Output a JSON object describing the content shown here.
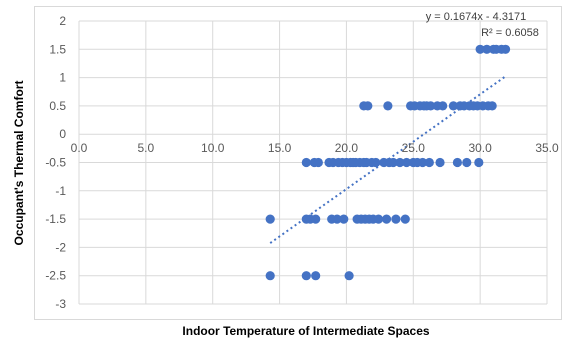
{
  "chart_data": {
    "type": "scatter",
    "xlabel": "Indoor Temperature of Intermediate Spaces",
    "ylabel": "Occupant's Thermal Comfort",
    "xlim": [
      0,
      35
    ],
    "ylim": [
      -3,
      2
    ],
    "x_ticks": [
      "0.0",
      "5.0",
      "10.0",
      "15.0",
      "20.0",
      "25.0",
      "30.0",
      "35.0"
    ],
    "y_ticks": [
      "2",
      "1.5",
      "1",
      "0.5",
      "0",
      "-0.5",
      "-1",
      "-1.5",
      "-2",
      "-2.5",
      "-3"
    ],
    "grid": true,
    "point_color": "#4472c4",
    "trendline": {
      "slope": 0.1674,
      "intercept": -4.3171,
      "x_range": [
        14.3,
        31.9
      ],
      "style": "dotted",
      "color": "#4472c4",
      "equation": "y = 0.1674x - 4.3171",
      "r2_label": "R² = 0.6058"
    },
    "series": [
      {
        "points": [
          [
            14.3,
            -1.5
          ],
          [
            14.3,
            -2.5
          ],
          [
            17.0,
            -0.5
          ],
          [
            17.0,
            -1.5
          ],
          [
            17.0,
            -2.5
          ],
          [
            17.3,
            -1.5
          ],
          [
            17.6,
            -0.5
          ],
          [
            17.7,
            -1.5
          ],
          [
            17.7,
            -2.5
          ],
          [
            17.9,
            -0.5
          ],
          [
            18.7,
            -0.5
          ],
          [
            18.9,
            -1.5
          ],
          [
            19.0,
            -0.5
          ],
          [
            19.3,
            -1.5
          ],
          [
            19.4,
            -0.5
          ],
          [
            19.7,
            -0.5
          ],
          [
            19.8,
            -1.5
          ],
          [
            20.0,
            -0.5
          ],
          [
            20.2,
            -2.5
          ],
          [
            20.3,
            -0.5
          ],
          [
            20.5,
            -0.5
          ],
          [
            20.7,
            -0.5
          ],
          [
            20.8,
            -1.5
          ],
          [
            21.0,
            -0.5
          ],
          [
            21.1,
            -1.5
          ],
          [
            21.3,
            -0.5
          ],
          [
            21.3,
            0.5
          ],
          [
            21.4,
            -1.5
          ],
          [
            21.5,
            -0.5
          ],
          [
            21.6,
            0.5
          ],
          [
            21.7,
            -1.5
          ],
          [
            21.9,
            -0.5
          ],
          [
            22.0,
            -1.5
          ],
          [
            22.2,
            -0.5
          ],
          [
            22.4,
            -1.5
          ],
          [
            22.8,
            -0.5
          ],
          [
            23.0,
            -1.5
          ],
          [
            23.1,
            0.5
          ],
          [
            23.2,
            -0.5
          ],
          [
            23.5,
            -0.5
          ],
          [
            23.7,
            -1.5
          ],
          [
            24.0,
            -0.5
          ],
          [
            24.4,
            -1.5
          ],
          [
            24.5,
            -0.5
          ],
          [
            24.8,
            0.5
          ],
          [
            25.0,
            -0.5
          ],
          [
            25.1,
            0.5
          ],
          [
            25.3,
            -0.5
          ],
          [
            25.5,
            0.5
          ],
          [
            25.7,
            -0.5
          ],
          [
            25.8,
            0.5
          ],
          [
            26.0,
            0.5
          ],
          [
            26.2,
            -0.5
          ],
          [
            26.3,
            0.5
          ],
          [
            26.8,
            0.5
          ],
          [
            27.0,
            -0.5
          ],
          [
            27.2,
            0.5
          ],
          [
            28.0,
            0.5
          ],
          [
            28.3,
            -0.5
          ],
          [
            28.5,
            0.5
          ],
          [
            28.8,
            0.5
          ],
          [
            29.0,
            -0.5
          ],
          [
            29.2,
            0.5
          ],
          [
            29.5,
            0.5
          ],
          [
            29.8,
            0.5
          ],
          [
            29.9,
            -0.5
          ],
          [
            30.0,
            1.5
          ],
          [
            30.2,
            0.5
          ],
          [
            30.5,
            1.5
          ],
          [
            30.6,
            0.5
          ],
          [
            30.9,
            0.5
          ],
          [
            31.0,
            1.5
          ],
          [
            31.2,
            1.5
          ],
          [
            31.6,
            1.5
          ],
          [
            31.9,
            1.5
          ]
        ]
      }
    ]
  }
}
